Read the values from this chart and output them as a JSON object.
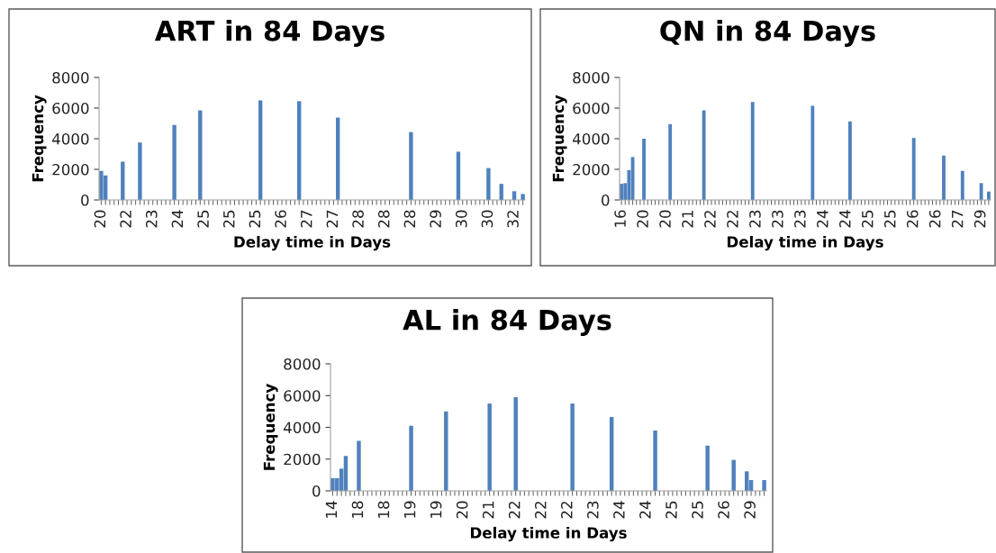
{
  "chart_data": [
    {
      "type": "bar",
      "title": "ART in 84 Days",
      "xlabel": "Delay time in Days",
      "ylabel": "Frequency",
      "color": "#4f81bd",
      "ylim": [
        0,
        8000
      ],
      "yticks": [
        0,
        2000,
        4000,
        6000,
        8000
      ],
      "categories": [
        "20",
        null,
        null,
        null,
        null,
        null,
        "22",
        null,
        null,
        null,
        null,
        null,
        "23",
        null,
        null,
        null,
        null,
        null,
        "24",
        null,
        null,
        null,
        null,
        null,
        "25",
        null,
        null,
        null,
        null,
        null,
        "25",
        null,
        null,
        null,
        null,
        null,
        "25",
        null,
        null,
        null,
        null,
        null,
        "26",
        null,
        null,
        null,
        null,
        null,
        "27",
        null,
        null,
        null,
        null,
        null,
        "27",
        null,
        null,
        null,
        null,
        null,
        "28",
        null,
        null,
        null,
        null,
        null,
        "28",
        null,
        null,
        null,
        null,
        null,
        "28",
        null,
        null,
        null,
        null,
        null,
        "29",
        null,
        null,
        null,
        null,
        null,
        "30",
        null,
        null,
        null,
        null,
        null,
        "30",
        null,
        null,
        null,
        null,
        null,
        "32",
        null,
        null
      ],
      "values": [
        1900,
        1600,
        0,
        0,
        0,
        2500,
        0,
        0,
        0,
        3750,
        0,
        0,
        0,
        0,
        0,
        0,
        0,
        4900,
        0,
        0,
        0,
        0,
        0,
        5850,
        0,
        0,
        0,
        0,
        0,
        0,
        0,
        0,
        0,
        0,
        0,
        0,
        0,
        6500,
        0,
        0,
        0,
        0,
        0,
        0,
        0,
        0,
        6450,
        0,
        0,
        0,
        0,
        0,
        0,
        0,
        0,
        5380,
        0,
        0,
        0,
        0,
        0,
        0,
        0,
        0,
        0,
        0,
        0,
        0,
        0,
        0,
        0,
        0,
        4430,
        0,
        0,
        0,
        0,
        0,
        0,
        0,
        0,
        0,
        0,
        3150,
        0,
        0,
        0,
        0,
        0,
        0,
        2080,
        0,
        0,
        1050,
        0,
        0,
        570,
        0,
        390
      ]
    },
    {
      "type": "bar",
      "title": "QN in 84 Days",
      "xlabel": "Delay time in Days",
      "ylabel": "Frequency",
      "color": "#4f81bd",
      "ylim": [
        0,
        8000
      ],
      "yticks": [
        0,
        2000,
        4000,
        6000,
        8000
      ],
      "categories": [
        "16",
        null,
        null,
        null,
        null,
        null,
        "20",
        null,
        null,
        null,
        null,
        null,
        "20",
        null,
        null,
        null,
        null,
        null,
        "21",
        null,
        null,
        null,
        null,
        null,
        "22",
        null,
        null,
        null,
        null,
        null,
        "22",
        null,
        null,
        null,
        null,
        null,
        "23",
        null,
        null,
        null,
        null,
        null,
        "23",
        null,
        null,
        null,
        null,
        null,
        "23",
        null,
        null,
        null,
        null,
        null,
        "24",
        null,
        null,
        null,
        null,
        null,
        "24",
        null,
        null,
        null,
        null,
        null,
        "25",
        null,
        null,
        null,
        null,
        null,
        "25",
        null,
        null,
        null,
        null,
        null,
        "26",
        null,
        null,
        null,
        null,
        null,
        "26",
        null,
        null,
        null,
        null,
        null,
        "27",
        null,
        null,
        null,
        null,
        null,
        "29",
        null,
        null
      ],
      "values": [
        1050,
        1100,
        1950,
        2800,
        0,
        0,
        4000,
        0,
        0,
        0,
        0,
        0,
        0,
        4950,
        0,
        0,
        0,
        0,
        0,
        0,
        0,
        0,
        5850,
        0,
        0,
        0,
        0,
        0,
        0,
        0,
        0,
        0,
        0,
        0,
        0,
        6400,
        0,
        0,
        0,
        0,
        0,
        0,
        0,
        0,
        0,
        0,
        0,
        0,
        0,
        0,
        0,
        6150,
        0,
        0,
        0,
        0,
        0,
        0,
        0,
        0,
        0,
        5130,
        0,
        0,
        0,
        0,
        0,
        0,
        0,
        0,
        0,
        0,
        0,
        0,
        0,
        0,
        0,
        0,
        4050,
        0,
        0,
        0,
        0,
        0,
        0,
        0,
        2900,
        0,
        0,
        0,
        0,
        1900,
        0,
        0,
        0,
        0,
        1100,
        0,
        550
      ]
    },
    {
      "type": "bar",
      "title": "AL in 84 Days",
      "xlabel": "Delay time in Days",
      "ylabel": "Frequency",
      "color": "#4f81bd",
      "ylim": [
        0,
        8000
      ],
      "yticks": [
        0,
        2000,
        4000,
        6000,
        8000
      ],
      "categories": [
        "14",
        null,
        null,
        null,
        null,
        null,
        "18",
        null,
        null,
        null,
        null,
        null,
        "18",
        null,
        null,
        null,
        null,
        null,
        "19",
        null,
        null,
        null,
        null,
        null,
        "19",
        null,
        null,
        null,
        null,
        null,
        "20",
        null,
        null,
        null,
        null,
        null,
        "21",
        null,
        null,
        null,
        null,
        null,
        "22",
        null,
        null,
        null,
        null,
        null,
        "22",
        null,
        null,
        null,
        null,
        null,
        "22",
        null,
        null,
        null,
        null,
        null,
        "23",
        null,
        null,
        null,
        null,
        null,
        "24",
        null,
        null,
        null,
        null,
        null,
        "24",
        null,
        null,
        null,
        null,
        null,
        "25",
        null,
        null,
        null,
        null,
        null,
        "25",
        null,
        null,
        null,
        null,
        null,
        "26",
        null,
        null,
        null,
        null,
        null,
        "29",
        null,
        null,
        null
      ],
      "values": [
        800,
        800,
        1400,
        2200,
        0,
        0,
        3150,
        0,
        0,
        0,
        0,
        0,
        0,
        0,
        0,
        0,
        0,
        0,
        4100,
        0,
        0,
        0,
        0,
        0,
        0,
        0,
        5000,
        0,
        0,
        0,
        0,
        0,
        0,
        0,
        0,
        0,
        5500,
        0,
        0,
        0,
        0,
        0,
        5900,
        0,
        0,
        0,
        0,
        0,
        0,
        0,
        0,
        0,
        0,
        0,
        0,
        5500,
        0,
        0,
        0,
        0,
        0,
        0,
        0,
        0,
        4650,
        0,
        0,
        0,
        0,
        0,
        0,
        0,
        0,
        0,
        3800,
        0,
        0,
        0,
        0,
        0,
        0,
        0,
        0,
        0,
        0,
        0,
        2850,
        0,
        0,
        0,
        0,
        0,
        1950,
        0,
        0,
        1230,
        680,
        0,
        0,
        680
      ]
    }
  ]
}
